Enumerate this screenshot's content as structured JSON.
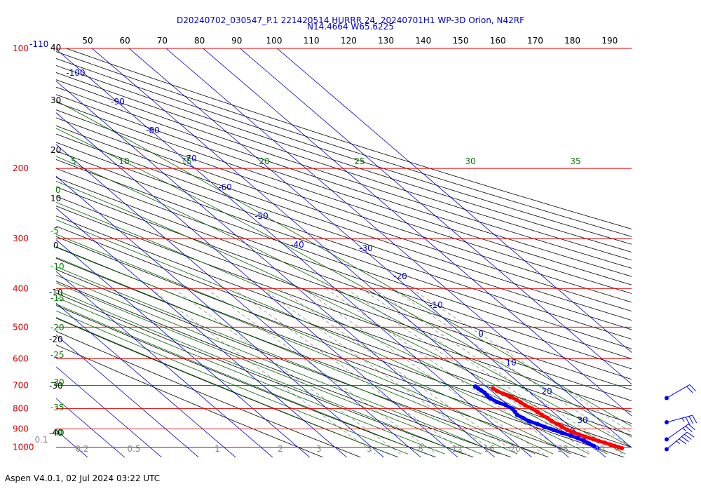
{
  "chart_data": {
    "type": "line",
    "chart_kind": "skew-T log-P sounding",
    "title": "D20240702_030547_P.1 221420514 HURRR 24, 20240701H1 WP-3D Orion, N42RF",
    "subtitle": "N14.4664 W65.6225",
    "footer": "Aspen V4.0.1, 02 Jul 2024  03:22 UTC",
    "pressure_levels": [
      "100",
      "200",
      "300",
      "400",
      "500",
      "600",
      "700",
      "800",
      "900",
      "1000"
    ],
    "pressure_top_extra": "-110",
    "pressure_range_hpa": [
      100,
      1015
    ],
    "isotherm_labels": [
      "-100",
      "-90",
      "-80",
      "-70",
      "-60",
      "-50",
      "-40",
      "-30",
      "-20",
      "-10",
      "0",
      "10",
      "20",
      "30"
    ],
    "top_axis_labels": [
      "50",
      "60",
      "70",
      "80",
      "90",
      "100",
      "110",
      "120",
      "130",
      "140",
      "150",
      "160",
      "170",
      "180",
      "190"
    ],
    "left_black_labels": [
      "40",
      "30",
      "20",
      "10",
      "0",
      "-10",
      "-20",
      "-30",
      "-40"
    ],
    "left_green_labels": [
      "0",
      "-5",
      "-10",
      "-15",
      "-20",
      "-25",
      "-30",
      "-35",
      "-40"
    ],
    "moist_adiabat_top_labels": [
      "5",
      "10",
      "15",
      "20",
      "25",
      "30",
      "35"
    ],
    "mixing_ratio_labels": [
      "0.1",
      "0.2",
      "0.5",
      "1",
      "2",
      "3",
      "5",
      "8",
      "12",
      "16",
      "20",
      "28",
      "40"
    ],
    "series": [
      {
        "name": "Temperature",
        "color": "#ff0000",
        "pressure": [
          712,
          722,
          735,
          748,
          760,
          772,
          785,
          800,
          815,
          830,
          845,
          860,
          875,
          890,
          905,
          918,
          930,
          942,
          955,
          965,
          975,
          985,
          993,
          1000,
          1006
        ],
        "temperature_c": [
          11.2,
          11.5,
          12.3,
          13.3,
          14.0,
          14.3,
          14.6,
          15.4,
          15.8,
          16.1,
          16.6,
          16.8,
          17.3,
          17.8,
          18.2,
          19.0,
          20.0,
          21.0,
          22.3,
          23.2,
          24.3,
          25.2,
          26.0,
          26.6,
          27.2
        ]
      },
      {
        "name": "Dew point",
        "color": "#0000ff",
        "pressure": [
          705,
          712,
          720,
          730,
          742,
          755,
          770,
          785,
          800,
          815,
          830,
          845,
          860,
          875,
          890,
          905,
          920,
          935,
          950,
          965,
          980,
          995,
          1005
        ],
        "temperature_c": [
          7.0,
          7.2,
          7.4,
          7.6,
          7.4,
          7.4,
          8.0,
          9.4,
          10.0,
          9.8,
          9.4,
          10.0,
          10.6,
          12.0,
          13.1,
          14.5,
          15.8,
          17.3,
          18.5,
          19.3,
          19.8,
          20.3,
          20.6
        ]
      }
    ],
    "wind_barbs": [
      {
        "pressure": 753,
        "speed_kt": 20,
        "direction_deg": 60
      },
      {
        "pressure": 866,
        "speed_kt": 35,
        "direction_deg": 75
      },
      {
        "pressure": 956,
        "speed_kt": 25,
        "direction_deg": 55
      },
      {
        "pressure": 1012,
        "speed_kt": 45,
        "direction_deg": 50
      }
    ],
    "colors": {
      "isobar": "#dd0000",
      "isotherm": "#0000cc",
      "dry_adiabat": "#000000",
      "moist_adiabat": "#006600",
      "mixing_ratio": "#888888",
      "pressure_label": "#dd0000",
      "isotherm_label": "#0000cc",
      "left_black_label": "#000000",
      "left_green_label": "#008000",
      "mixing_label": "#888888",
      "title": "#0000cc"
    }
  }
}
